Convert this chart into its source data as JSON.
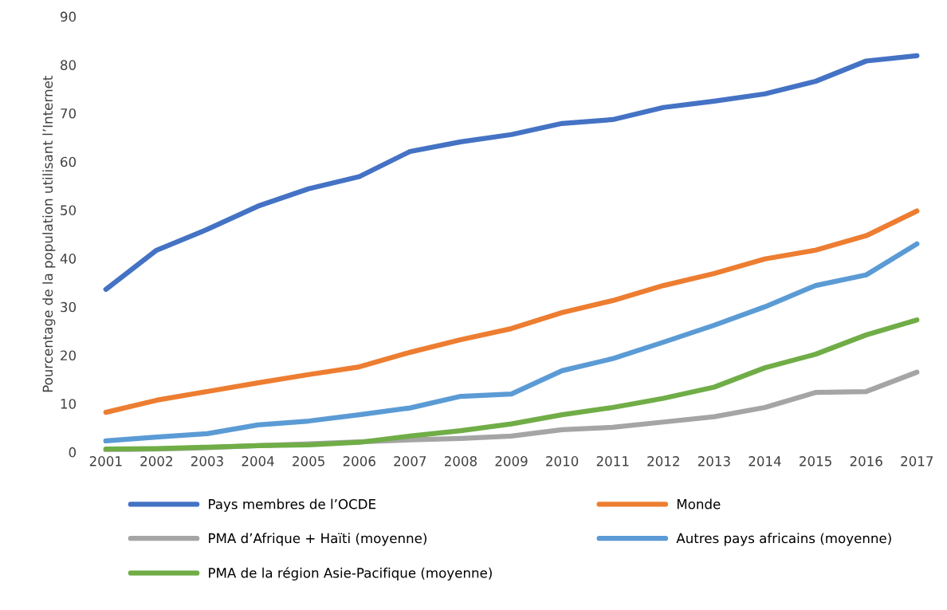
{
  "chart_data": {
    "type": "line",
    "ylabel": "Pourcentage de la population utilisant l’Internet",
    "categories": [
      "2001",
      "2002",
      "2003",
      "2004",
      "2005",
      "2006",
      "2007",
      "2008",
      "2009",
      "2010",
      "2011",
      "2012",
      "2013",
      "2014",
      "2015",
      "2016",
      "2017"
    ],
    "ylim": [
      0,
      90
    ],
    "yticks": [
      0,
      10,
      20,
      30,
      40,
      50,
      60,
      70,
      80,
      90
    ],
    "grid": false,
    "legend": "bottom",
    "marker": "none",
    "line_style": "solid",
    "series": [
      {
        "name": "Pays membres de l’OCDE",
        "color": "#4472c4",
        "values": [
          33.6,
          41.7,
          46.0,
          50.8,
          54.4,
          56.9,
          62.1,
          64.1,
          65.6,
          67.9,
          68.7,
          71.2,
          72.5,
          74.0,
          76.6,
          80.8,
          81.9
        ]
      },
      {
        "name": "Monde",
        "color": "#ed7d31",
        "values": [
          8.2,
          10.7,
          12.5,
          14.3,
          16.0,
          17.6,
          20.6,
          23.2,
          25.5,
          28.8,
          31.3,
          34.4,
          36.9,
          39.9,
          41.7,
          44.7,
          49.8
        ]
      },
      {
        "name": "PMA d’Afrique + Haïti (moyenne)",
        "color": "#a5a5a5",
        "values": [
          0.4,
          0.6,
          0.9,
          1.3,
          1.7,
          2.1,
          2.5,
          2.8,
          3.3,
          4.6,
          5.1,
          6.2,
          7.3,
          9.2,
          12.3,
          12.5,
          16.5
        ]
      },
      {
        "name": "Autres pays africains (moyenne)",
        "color": "#5b9bd5",
        "values": [
          2.3,
          3.1,
          3.8,
          5.6,
          6.4,
          7.7,
          9.1,
          11.5,
          12.0,
          16.8,
          19.3,
          22.7,
          26.2,
          30.0,
          34.4,
          36.6,
          43.0
        ]
      },
      {
        "name": "PMA de la région Asie-Pacifique (moyenne)",
        "color": "#70ad47",
        "values": [
          0.6,
          0.7,
          1.0,
          1.3,
          1.5,
          2.0,
          3.3,
          4.4,
          5.8,
          7.7,
          9.2,
          11.1,
          13.4,
          17.4,
          20.2,
          24.2,
          27.3
        ]
      }
    ]
  }
}
